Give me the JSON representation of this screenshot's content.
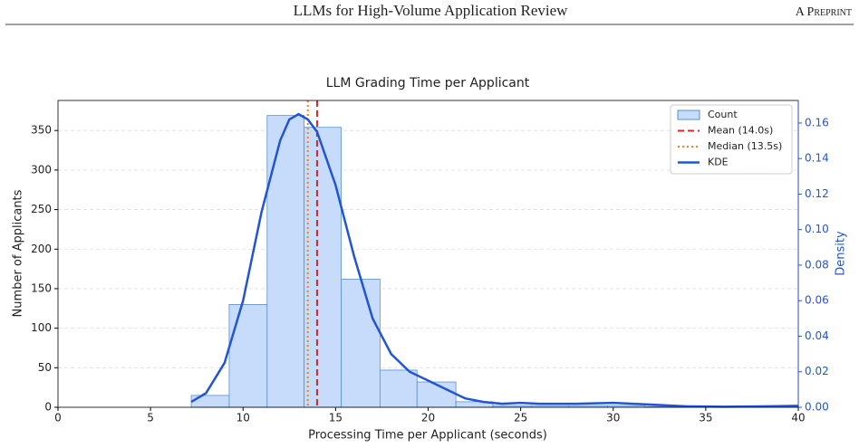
{
  "header": {
    "title": "LLMs for High-Volume Application Review",
    "tag": "A Preprint"
  },
  "chart_data": {
    "type": "histogram",
    "title": "LLM Grading Time per Applicant",
    "xlabel": "Processing Time per Applicant (seconds)",
    "ylabel": "Number of Applicants",
    "y2label": "Density",
    "bins": [
      7.2,
      9.25,
      11.3,
      13.3,
      15.3,
      17.4,
      19.4,
      21.5,
      23.5,
      25.6,
      27.6,
      29.7,
      31.7,
      33.8,
      35.8,
      37.9,
      39.9
    ],
    "counts": [
      15,
      130,
      369,
      354,
      162,
      47,
      32,
      7,
      2,
      2,
      2,
      2,
      1,
      0,
      0,
      1
    ],
    "count_name": "Count",
    "color": "#c6dcfa",
    "edgecolor": "#5b8fd6",
    "vlines": [
      {
        "name": "Mean (14.0s)",
        "x": 14.0,
        "color": "#d62728",
        "style": "dashed"
      },
      {
        "name": "Median (13.5s)",
        "x": 13.5,
        "color": "#ff7f0e",
        "style": "dotted"
      }
    ],
    "kde": {
      "name": "KDE",
      "axis": "y2",
      "color": "#2255d6",
      "x": [
        7.2,
        8,
        9,
        10,
        11,
        12,
        12.5,
        13,
        13.5,
        14,
        15,
        16,
        17,
        18,
        19,
        20,
        21,
        22,
        23,
        24,
        25,
        26,
        28,
        30,
        32,
        34,
        36,
        38,
        40
      ],
      "values": [
        0.003,
        0.008,
        0.025,
        0.06,
        0.11,
        0.15,
        0.162,
        0.165,
        0.162,
        0.155,
        0.125,
        0.085,
        0.05,
        0.03,
        0.02,
        0.015,
        0.01,
        0.005,
        0.003,
        0.002,
        0.0025,
        0.002,
        0.002,
        0.0025,
        0.0015,
        0.0005,
        0.0003,
        0.0005,
        0.0008
      ]
    },
    "xlim": [
      0,
      40
    ],
    "xticks": [
      0,
      5,
      10,
      15,
      20,
      25,
      30,
      35,
      40
    ],
    "ylim": [
      0,
      388
    ],
    "yticks": [
      0,
      50,
      100,
      150,
      200,
      250,
      300,
      350
    ],
    "y2lim": [
      0,
      0.1727
    ],
    "y2ticks": [
      {
        "value": 0,
        "label": "0.00"
      },
      0.02,
      0.04,
      0.06,
      0.08,
      {
        "value": 0.1,
        "label": "0.10"
      },
      0.12,
      0.14,
      0.16
    ],
    "grid": true,
    "legend": "upper right"
  }
}
